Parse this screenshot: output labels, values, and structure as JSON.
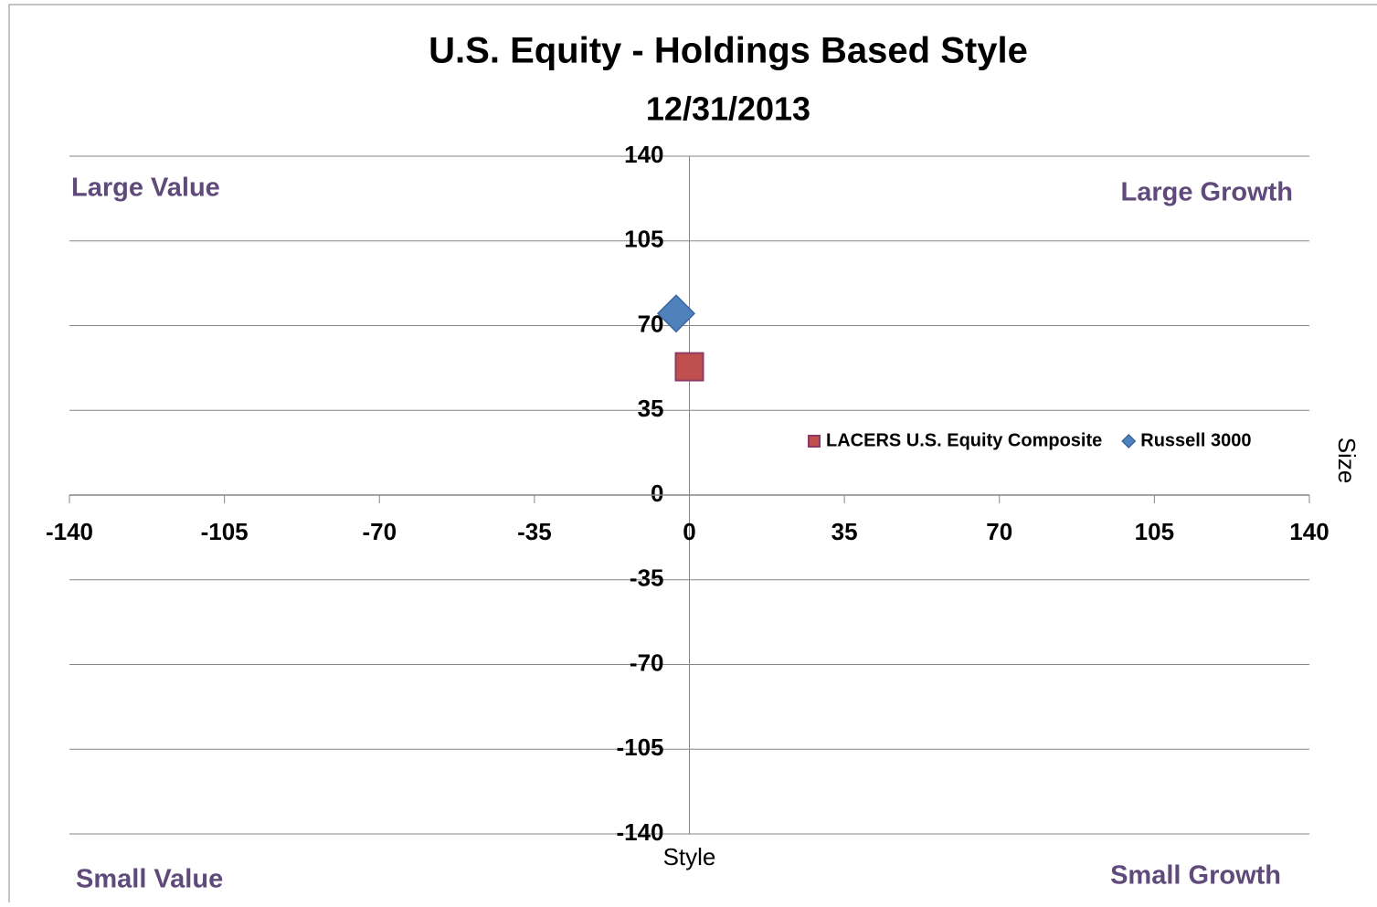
{
  "chart_data": {
    "type": "scatter",
    "title": "U.S. Equity - Holdings Based Style",
    "subtitle": "12/31/2013",
    "x_label": "Style",
    "y_label": "Size",
    "xlim": [
      -140,
      140
    ],
    "ylim": [
      -140,
      140
    ],
    "xticks": [
      -140,
      -105,
      -70,
      -35,
      0,
      35,
      70,
      105,
      140
    ],
    "yticks": [
      -140,
      -105,
      -70,
      -35,
      0,
      35,
      70,
      105,
      140
    ],
    "grid": true,
    "legend": "right",
    "annotations": [
      "Large Value",
      "Large Growth",
      "Small Value",
      "Small Growth"
    ],
    "annotation_color": "#604a7b",
    "series": [
      {
        "name": "LACERS U.S. Equity Composite",
        "color": "#c0504d",
        "marker": "square",
        "x": [
          0
        ],
        "values": [
          53
        ]
      },
      {
        "name": "Russell 3000",
        "color": "#4f81bd",
        "marker": "diamond",
        "x": [
          -3
        ],
        "values": [
          75
        ]
      }
    ]
  }
}
